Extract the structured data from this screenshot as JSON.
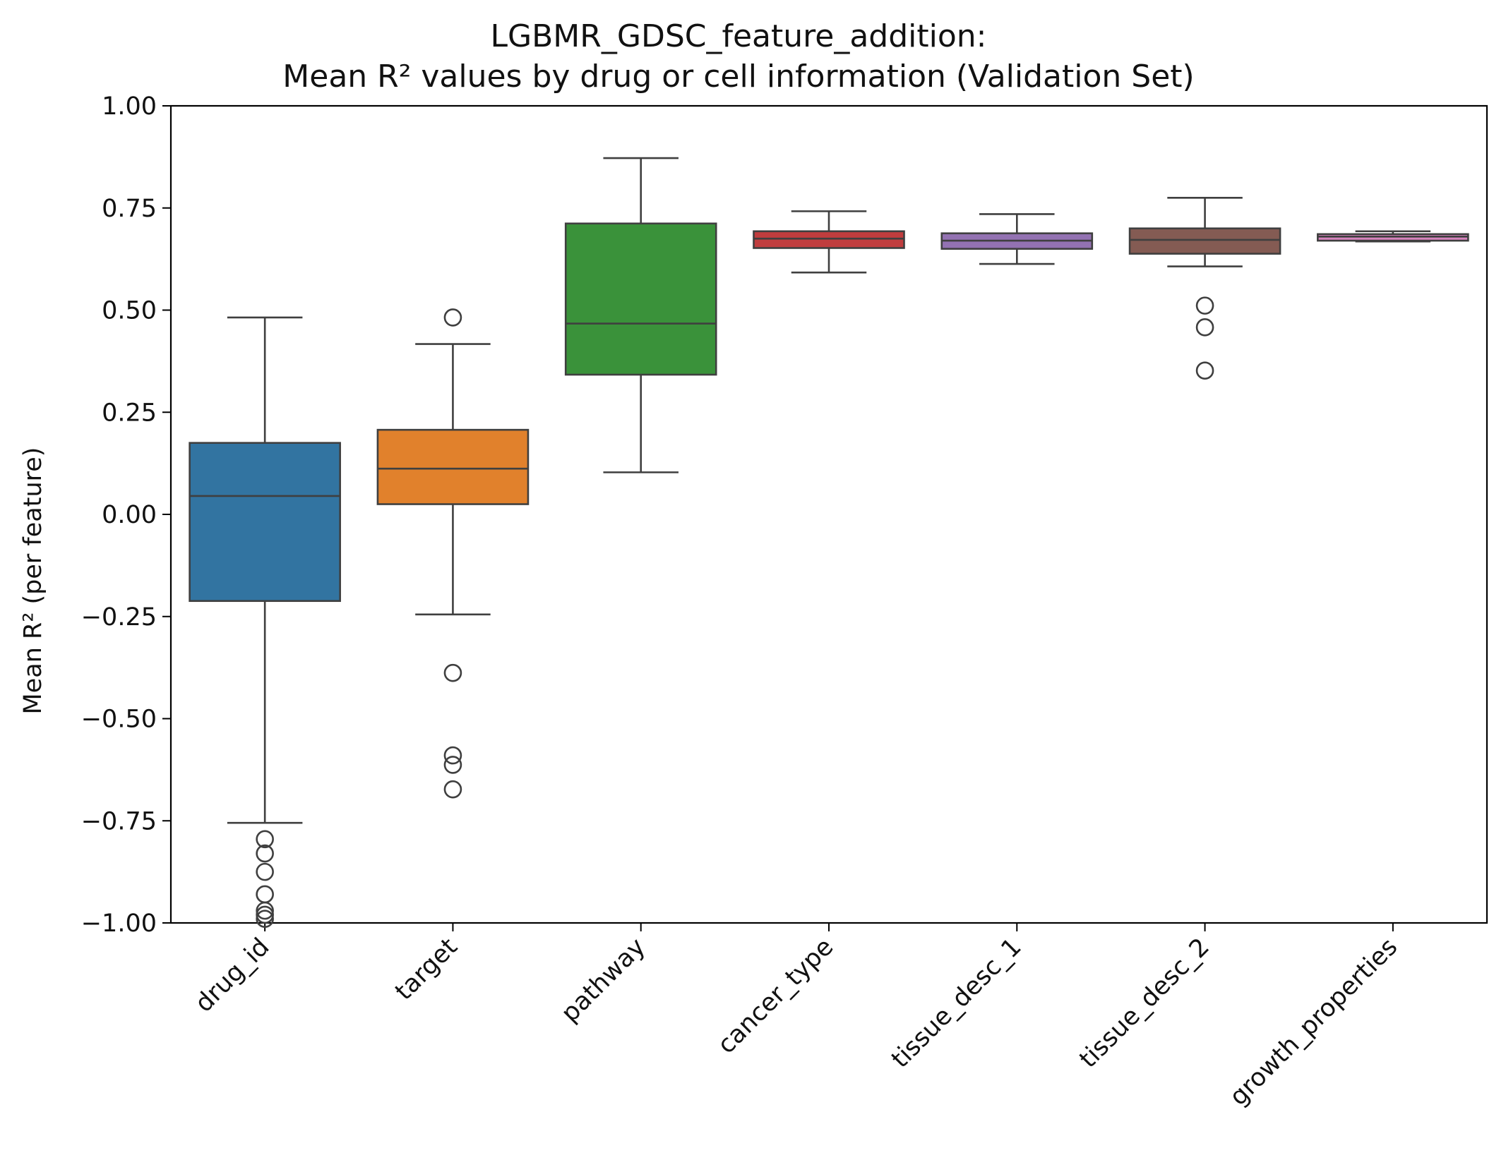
{
  "chart_data": {
    "type": "box",
    "title_line1": "LGBMR_GDSC_feature_addition:",
    "title_line2": "Mean R² values by drug or cell information (Validation Set)",
    "xlabel": "",
    "ylabel": "Mean R² (per feature)",
    "ylim": [
      -1.0,
      1.0
    ],
    "yticks": [
      {
        "value": 1.0,
        "label": "1.00"
      },
      {
        "value": 0.75,
        "label": "0.75"
      },
      {
        "value": 0.5,
        "label": "0.50"
      },
      {
        "value": 0.25,
        "label": "0.25"
      },
      {
        "value": 0.0,
        "label": "0.00"
      },
      {
        "value": -0.25,
        "label": "−0.25"
      },
      {
        "value": -0.5,
        "label": "−0.50"
      },
      {
        "value": -0.75,
        "label": "−0.75"
      },
      {
        "value": -1.0,
        "label": "−1.00"
      }
    ],
    "grid": false,
    "categories": [
      "drug_id",
      "target",
      "pathway",
      "cancer_type",
      "tissue_desc_1",
      "tissue_desc_2",
      "growth_properties"
    ],
    "boxes": [
      {
        "category": "drug_id",
        "color": "#3274a1",
        "whisker_low": -0.755,
        "q1": -0.212,
        "median": 0.045,
        "q3": 0.175,
        "whisker_high": 0.482,
        "outliers": [
          -0.795,
          -0.83,
          -0.875,
          -0.93,
          -0.97,
          -0.98,
          -0.99
        ]
      },
      {
        "category": "target",
        "color": "#e1812c",
        "whisker_low": -0.245,
        "q1": 0.025,
        "median": 0.112,
        "q3": 0.207,
        "whisker_high": 0.417,
        "outliers": [
          0.482,
          -0.388,
          -0.59,
          -0.613,
          -0.673
        ]
      },
      {
        "category": "pathway",
        "color": "#3a923a",
        "whisker_low": 0.103,
        "q1": 0.342,
        "median": 0.467,
        "q3": 0.712,
        "whisker_high": 0.872,
        "outliers": []
      },
      {
        "category": "cancer_type",
        "color": "#c03d3e",
        "whisker_low": 0.592,
        "q1": 0.652,
        "median": 0.675,
        "q3": 0.693,
        "whisker_high": 0.742,
        "outliers": []
      },
      {
        "category": "tissue_desc_1",
        "color": "#9372b2",
        "whisker_low": 0.613,
        "q1": 0.65,
        "median": 0.67,
        "q3": 0.688,
        "whisker_high": 0.735,
        "outliers": []
      },
      {
        "category": "tissue_desc_2",
        "color": "#845b53",
        "whisker_low": 0.607,
        "q1": 0.638,
        "median": 0.672,
        "q3": 0.7,
        "whisker_high": 0.775,
        "outliers": [
          0.511,
          0.458,
          0.352
        ]
      },
      {
        "category": "growth_properties",
        "color": "#d684bd",
        "whisker_low": 0.668,
        "q1": 0.67,
        "median": 0.68,
        "q3": 0.686,
        "whisker_high": 0.693,
        "outliers": []
      }
    ]
  }
}
